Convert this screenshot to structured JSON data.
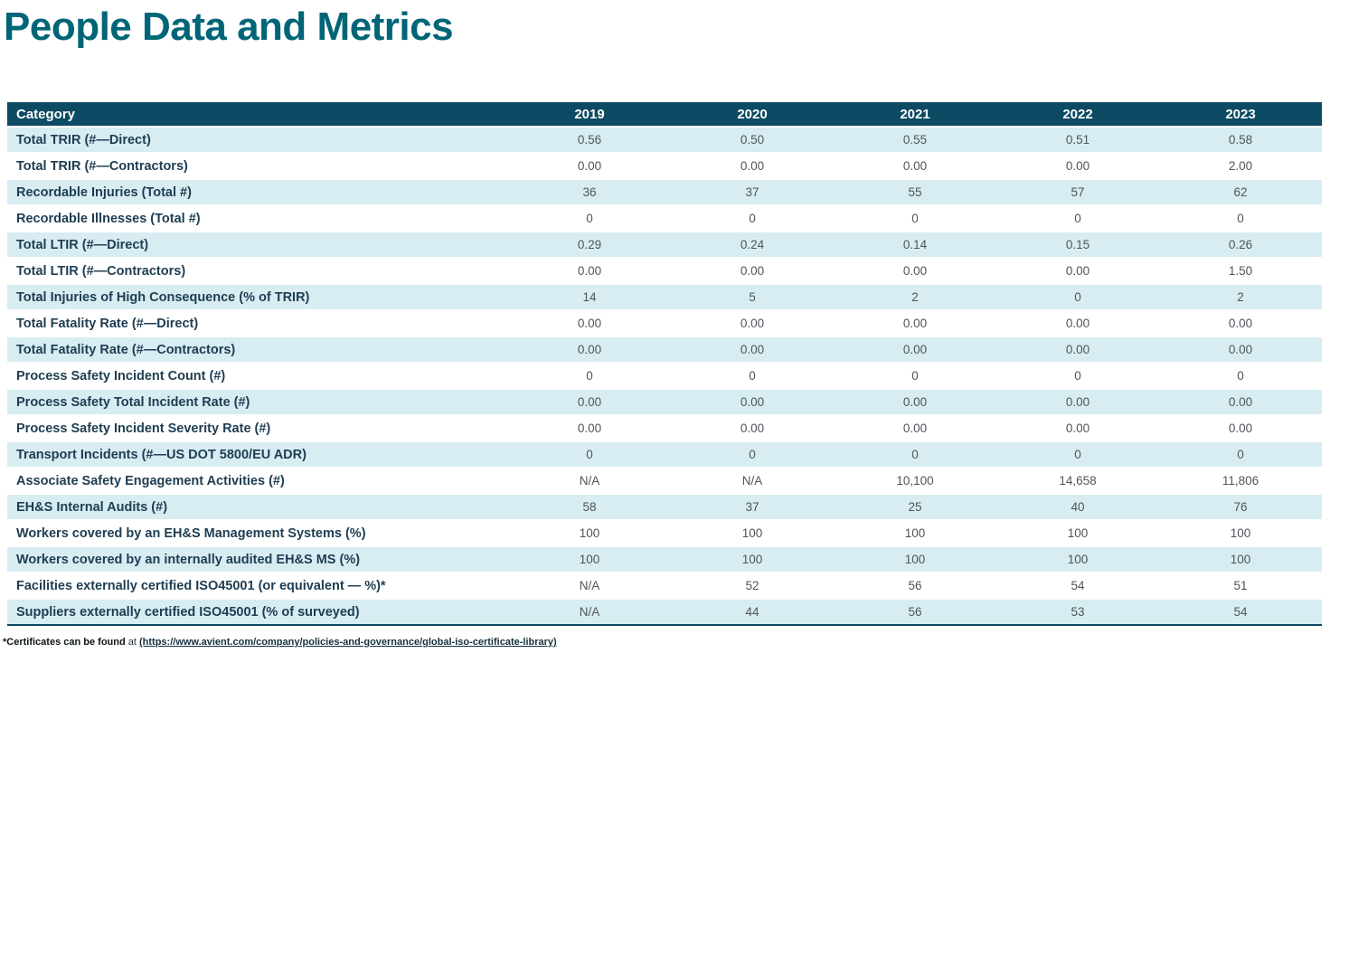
{
  "page_title": "People Data and Metrics",
  "colors": {
    "title": "#006577",
    "header_bg": "#0d4a63",
    "header_text": "#ffffff",
    "row_alt_bg": "#d8edf2",
    "label_text": "#1e3d52",
    "value_text": "#4e545a"
  },
  "table": {
    "headers": [
      "Category",
      "2019",
      "2020",
      "2021",
      "2022",
      "2023"
    ],
    "rows": [
      {
        "label": "Total TRIR (#—Direct)",
        "values": [
          "0.56",
          "0.50",
          "0.55",
          "0.51",
          "0.58"
        ]
      },
      {
        "label": "Total TRIR (#—Contractors)",
        "values": [
          "0.00",
          "0.00",
          "0.00",
          "0.00",
          "2.00"
        ]
      },
      {
        "label": "Recordable Injuries (Total #)",
        "values": [
          "36",
          "37",
          "55",
          "57",
          "62"
        ]
      },
      {
        "label": "Recordable Illnesses (Total #)",
        "values": [
          "0",
          "0",
          "0",
          "0",
          "0"
        ]
      },
      {
        "label": "Total LTIR (#—Direct)",
        "values": [
          "0.29",
          "0.24",
          "0.14",
          "0.15",
          "0.26"
        ]
      },
      {
        "label": "Total LTIR (#—Contractors)",
        "values": [
          "0.00",
          "0.00",
          "0.00",
          "0.00",
          "1.50"
        ]
      },
      {
        "label": "Total Injuries of High Consequence (% of TRIR)",
        "values": [
          "14",
          "5",
          "2",
          "0",
          "2"
        ]
      },
      {
        "label": "Total Fatality Rate (#—Direct)",
        "values": [
          "0.00",
          "0.00",
          "0.00",
          "0.00",
          "0.00"
        ]
      },
      {
        "label": "Total Fatality Rate (#—Contractors)",
        "values": [
          "0.00",
          "0.00",
          "0.00",
          "0.00",
          "0.00"
        ]
      },
      {
        "label": "Process Safety Incident Count (#)",
        "values": [
          "0",
          "0",
          "0",
          "0",
          "0"
        ]
      },
      {
        "label": "Process Safety Total Incident Rate (#)",
        "values": [
          "0.00",
          "0.00",
          "0.00",
          "0.00",
          "0.00"
        ]
      },
      {
        "label": "Process Safety Incident Severity Rate (#)",
        "values": [
          "0.00",
          "0.00",
          "0.00",
          "0.00",
          "0.00"
        ]
      },
      {
        "label": "Transport Incidents (#—US DOT 5800/EU ADR)",
        "values": [
          "0",
          "0",
          "0",
          "0",
          "0"
        ]
      },
      {
        "label": "Associate Safety Engagement Activities (#)",
        "values": [
          "N/A",
          "N/A",
          "10,100",
          "14,658",
          "11,806"
        ]
      },
      {
        "label": "EH&S Internal Audits (#)",
        "values": [
          "58",
          "37",
          "25",
          "40",
          "76"
        ]
      },
      {
        "label": "Workers covered by an EH&S Management Systems (%)",
        "values": [
          "100",
          "100",
          "100",
          "100",
          "100"
        ]
      },
      {
        "label": "Workers covered by an internally audited EH&S MS (%)",
        "values": [
          "100",
          "100",
          "100",
          "100",
          "100"
        ]
      },
      {
        "label": "Facilities externally certified ISO45001 (or equivalent — %)*",
        "values": [
          "N/A",
          "52",
          "56",
          "54",
          "51"
        ]
      },
      {
        "label": "Suppliers externally certified ISO45001 (% of surveyed)",
        "values": [
          "N/A",
          "44",
          "56",
          "53",
          "54"
        ]
      }
    ]
  },
  "footnote": {
    "bold_text": "*Certificates can be found",
    "plain_text": " at ",
    "link_text": "(https://www.avient.com/company/policies-and-governance/global-iso-certificate-library)"
  }
}
